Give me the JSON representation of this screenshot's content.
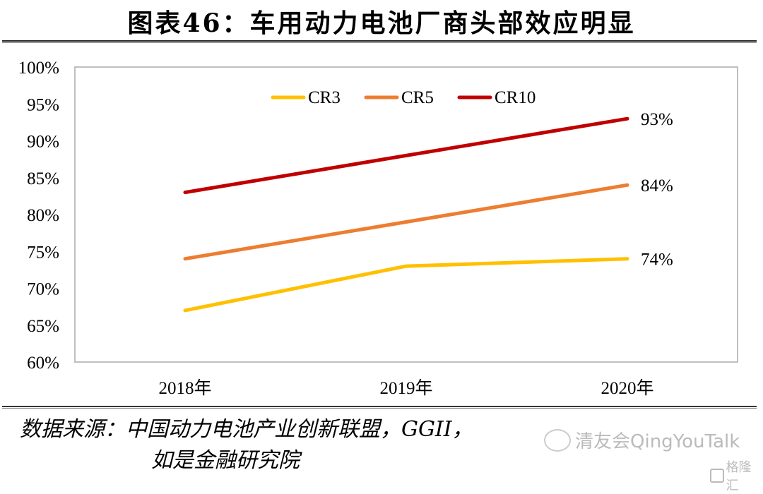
{
  "header": {
    "title": "图表46：车用动力电池厂商头部效应明显"
  },
  "source": {
    "line1": "数据来源：中国动力电池产业创新联盟，GGII，",
    "line2": "如是金融研究院"
  },
  "watermark": {
    "text": "清友会QingYouTalk",
    "icon": "wechat-chat-icon",
    "brand_text": "格隆汇",
    "brand_icon": "gelonghui-logo-icon"
  },
  "chart_data": {
    "type": "line",
    "title": "图表46：车用动力电池厂商头部效应明显",
    "xlabel": "",
    "ylabel": "",
    "categories": [
      "2018年",
      "2019年",
      "2020年"
    ],
    "ylim": [
      60,
      100
    ],
    "y_unit": "%",
    "y_ticks": [
      60,
      65,
      70,
      75,
      80,
      85,
      90,
      95,
      100
    ],
    "y_tick_labels": [
      "60%",
      "65%",
      "70%",
      "75%",
      "80%",
      "85%",
      "90%",
      "95%",
      "100%"
    ],
    "grid": false,
    "legend_position": "top-center",
    "series": [
      {
        "name": "CR3",
        "color": "#FFC000",
        "values": [
          67,
          73,
          74
        ],
        "end_label": "74%"
      },
      {
        "name": "CR5",
        "color": "#ED7D31",
        "values": [
          74,
          79,
          84
        ],
        "end_label": "84%"
      },
      {
        "name": "CR10",
        "color": "#C00000",
        "values": [
          83,
          88,
          93
        ],
        "end_label": "93%"
      }
    ]
  }
}
